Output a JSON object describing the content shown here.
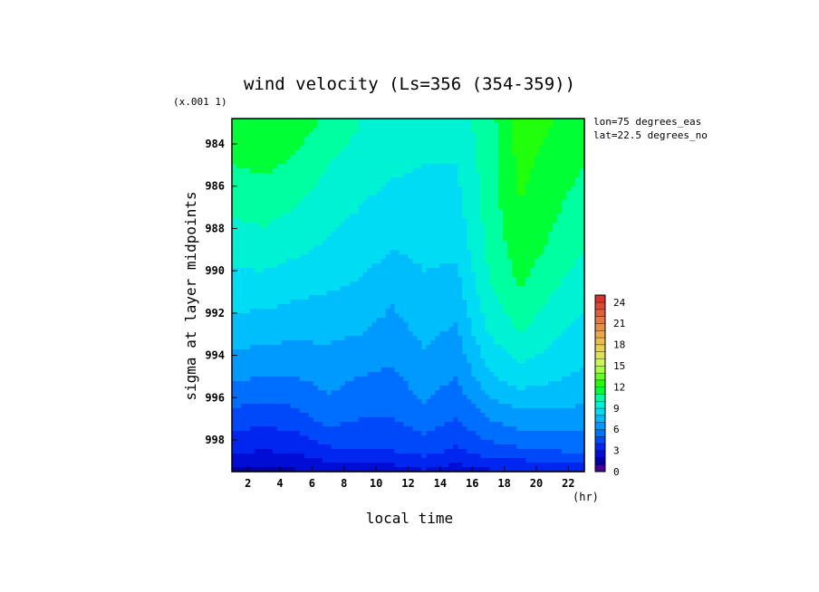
{
  "chart_data": {
    "type": "heatmap",
    "title": "wind velocity (Ls=356 (354-359))",
    "xlabel": "local time",
    "ylabel": "sigma at layer midpoints",
    "x_unit": "(hr)",
    "y_scale_note": "(x.001 1)",
    "annotations": [
      "lon=75 degrees_eas",
      "lat=22.5 degrees_no"
    ],
    "xlim": [
      1,
      23
    ],
    "ylim": [
      982.8,
      999.5
    ],
    "y_inverted": true,
    "x_ticks": [
      "2",
      "4",
      "6",
      "8",
      "10",
      "12",
      "14",
      "16",
      "18",
      "20",
      "22"
    ],
    "y_ticks": [
      "984",
      "986",
      "988",
      "990",
      "992",
      "994",
      "996",
      "998"
    ],
    "colorbar": {
      "ticks": [
        "0",
        "3",
        "6",
        "9",
        "12",
        "15",
        "18",
        "21",
        "24"
      ],
      "min": 0,
      "max": 25,
      "step": 1
    },
    "grid": false,
    "x": [
      1,
      3,
      5,
      7,
      9,
      11,
      13,
      15,
      17,
      19,
      21,
      23
    ],
    "y": [
      983,
      985,
      987,
      989,
      991,
      993,
      995,
      997,
      998.5,
      999.4
    ],
    "values": [
      [
        11.5,
        11.8,
        11.5,
        10.8,
        10,
        9.8,
        9.6,
        9.5,
        10.5,
        12.5,
        12,
        11.5
      ],
      [
        11,
        11.2,
        10.8,
        10,
        9.5,
        9.2,
        9,
        9,
        10.5,
        12.3,
        11.6,
        11
      ],
      [
        10.2,
        10.4,
        10,
        9.4,
        9,
        8.6,
        8.6,
        8.6,
        10.4,
        12,
        11.2,
        10.5
      ],
      [
        9.4,
        9.5,
        9.2,
        8.8,
        8.5,
        8,
        8.2,
        8.2,
        10.2,
        11.6,
        10.8,
        10
      ],
      [
        8.5,
        8.5,
        8.2,
        8,
        7.8,
        7.2,
        7.8,
        7.5,
        9.8,
        11,
        10,
        9.4
      ],
      [
        7.5,
        7.3,
        7.2,
        7.2,
        7,
        6.6,
        7.2,
        6.8,
        9,
        10,
        9.2,
        8.6
      ],
      [
        6.2,
        6,
        6,
        6.4,
        6,
        5.8,
        6.6,
        6,
        7.8,
        8.6,
        8.2,
        7.8
      ],
      [
        4.6,
        4.3,
        4.6,
        5.4,
        5,
        5,
        5.6,
        5,
        6,
        6.6,
        6.6,
        6.6
      ],
      [
        3.2,
        3,
        3.2,
        3.8,
        4,
        4,
        4.4,
        3.8,
        4.6,
        4.8,
        5,
        5.2
      ],
      [
        1.8,
        1.8,
        2,
        2.4,
        2.6,
        2.6,
        3,
        2.6,
        3,
        3.2,
        3.4,
        3.6
      ]
    ]
  }
}
